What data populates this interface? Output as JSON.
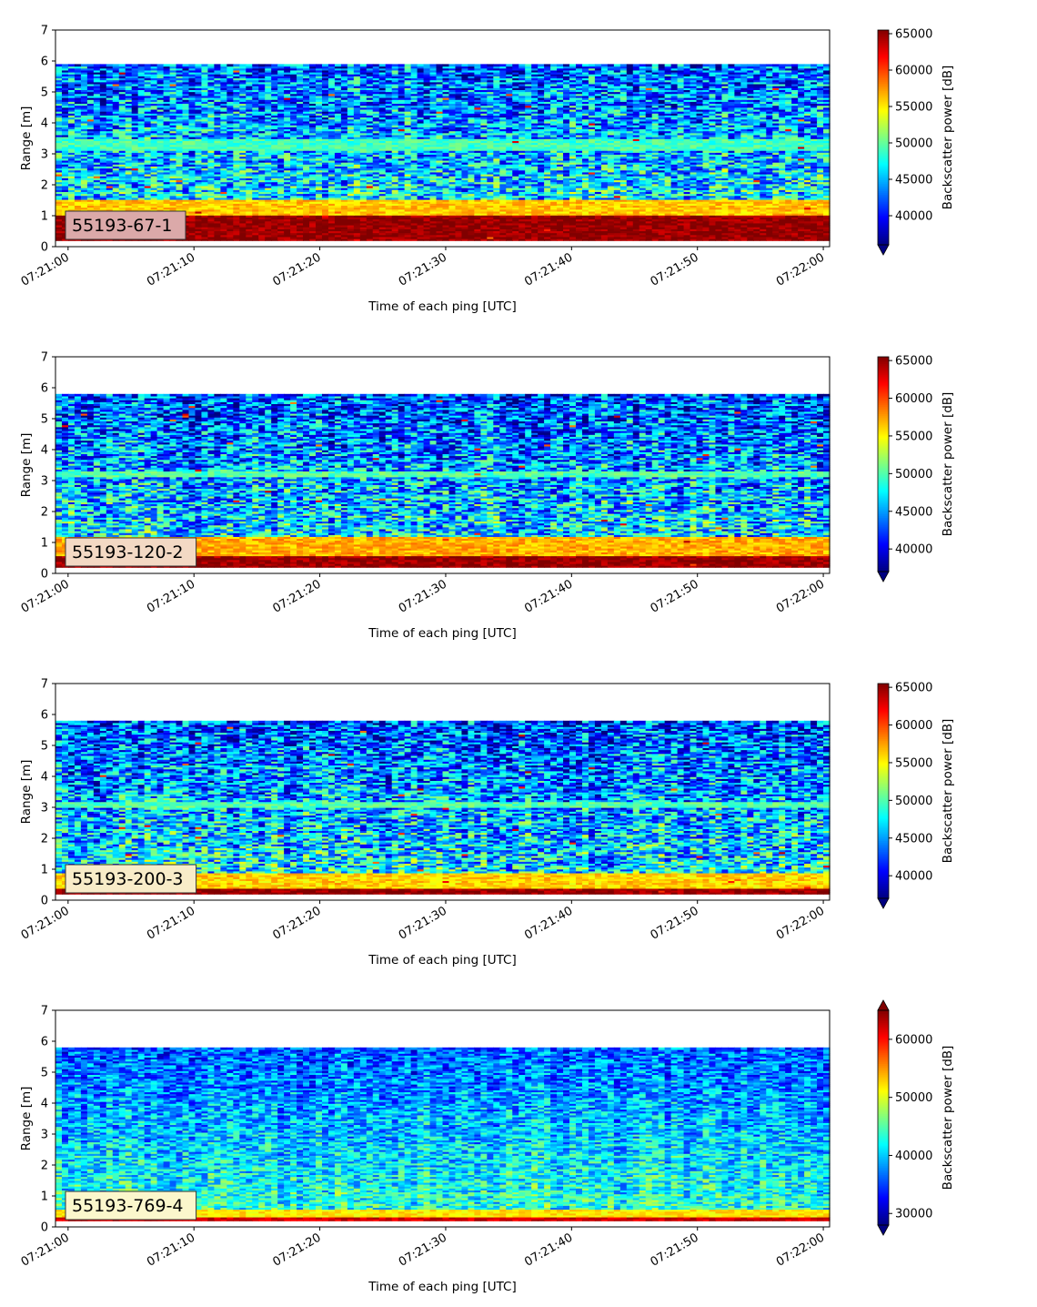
{
  "chart_data": [
    {
      "type": "heatmap",
      "label": "55193-67-1",
      "xlabel": "Time of each ping [UTC]",
      "ylabel": "Range [m]",
      "x_ticks": [
        "07:21:00",
        "07:21:10",
        "07:21:20",
        "07:21:30",
        "07:21:40",
        "07:21:50",
        "07:22:00"
      ],
      "y_ticks": [
        0,
        1,
        2,
        3,
        4,
        5,
        6,
        7
      ],
      "xlim": [
        "07:20:59",
        "07:22:00.5"
      ],
      "ylim": [
        0,
        7
      ],
      "data_range_m": [
        0.2,
        5.9
      ],
      "colormap": "jet",
      "colorbar": {
        "label": "Backscatter power [dB]",
        "ticks": [
          40000,
          45000,
          50000,
          55000,
          60000,
          65000
        ],
        "vmin": 36000,
        "vmax": 65500,
        "extend": "min"
      },
      "badge_color": "#dba9a9",
      "features": [
        {
          "range_m": [
            0.2,
            1.0
          ],
          "level": 65000,
          "description": "strong near-field return"
        },
        {
          "range_m": [
            1.0,
            1.5
          ],
          "level": 56000,
          "description": "transition band"
        },
        {
          "range_m": [
            3.1,
            3.5
          ],
          "level": 49000,
          "description": "faint horizontal layer"
        }
      ]
    },
    {
      "type": "heatmap",
      "label": "55193-120-2",
      "xlabel": "Time of each ping [UTC]",
      "ylabel": "Range [m]",
      "x_ticks": [
        "07:21:00",
        "07:21:10",
        "07:21:20",
        "07:21:30",
        "07:21:40",
        "07:21:50",
        "07:22:00"
      ],
      "y_ticks": [
        0,
        1,
        2,
        3,
        4,
        5,
        6,
        7
      ],
      "xlim": [
        "07:20:59",
        "07:22:00.5"
      ],
      "ylim": [
        0,
        7
      ],
      "data_range_m": [
        0.2,
        5.8
      ],
      "colormap": "jet",
      "colorbar": {
        "label": "Backscatter power [dB]",
        "ticks": [
          40000,
          45000,
          50000,
          55000,
          60000,
          65000
        ],
        "vmin": 37000,
        "vmax": 65500,
        "extend": "min"
      },
      "badge_color": "#f3d9c4",
      "features": [
        {
          "range_m": [
            0.2,
            0.6
          ],
          "level": 65000,
          "description": "strong near-field return"
        },
        {
          "range_m": [
            0.6,
            1.2
          ],
          "level": 57000,
          "description": "transition band"
        },
        {
          "range_m": [
            3.1,
            3.3
          ],
          "level": 50000,
          "description": "horizontal layer near 3.2 m"
        }
      ]
    },
    {
      "type": "heatmap",
      "label": "55193-200-3",
      "xlabel": "Time of each ping [UTC]",
      "ylabel": "Range [m]",
      "x_ticks": [
        "07:21:00",
        "07:21:10",
        "07:21:20",
        "07:21:30",
        "07:21:40",
        "07:21:50",
        "07:22:00"
      ],
      "y_ticks": [
        0,
        1,
        2,
        3,
        4,
        5,
        6,
        7
      ],
      "xlim": [
        "07:20:59",
        "07:22:00.5"
      ],
      "ylim": [
        0,
        7
      ],
      "data_range_m": [
        0.2,
        5.8
      ],
      "colormap": "jet",
      "colorbar": {
        "label": "Backscatter power [dB]",
        "ticks": [
          40000,
          45000,
          50000,
          55000,
          60000,
          65000
        ],
        "vmin": 37000,
        "vmax": 65500,
        "extend": "min"
      },
      "badge_color": "#f8ecc8",
      "features": [
        {
          "range_m": [
            0.2,
            0.4
          ],
          "level": 65000,
          "description": "strong near-field return"
        },
        {
          "range_m": [
            0.4,
            0.9
          ],
          "level": 56000,
          "description": "transition band"
        },
        {
          "range_m": [
            3.0,
            3.2
          ],
          "level": 50000,
          "description": "horizontal layer near 3.1 m"
        }
      ]
    },
    {
      "type": "heatmap",
      "label": "55193-769-4",
      "xlabel": "Time of each ping [UTC]",
      "ylabel": "Range [m]",
      "x_ticks": [
        "07:21:00",
        "07:21:10",
        "07:21:20",
        "07:21:30",
        "07:21:40",
        "07:21:50",
        "07:22:00"
      ],
      "y_ticks": [
        0,
        1,
        2,
        3,
        4,
        5,
        6,
        7
      ],
      "xlim": [
        "07:20:59",
        "07:22:00.5"
      ],
      "ylim": [
        0,
        7
      ],
      "data_range_m": [
        0.2,
        5.8
      ],
      "colormap": "jet",
      "colorbar": {
        "label": "Backscatter power [dB]",
        "ticks": [
          30000,
          40000,
          50000,
          60000
        ],
        "vmin": 28000,
        "vmax": 65000,
        "extend": "both"
      },
      "badge_color": "#fbf7cc",
      "features": [
        {
          "range_m": [
            0.2,
            0.3
          ],
          "level": 62000,
          "description": "thin strong near-field return"
        },
        {
          "range_m": [
            0.3,
            0.6
          ],
          "level": 52000,
          "description": "transition band"
        }
      ]
    }
  ]
}
